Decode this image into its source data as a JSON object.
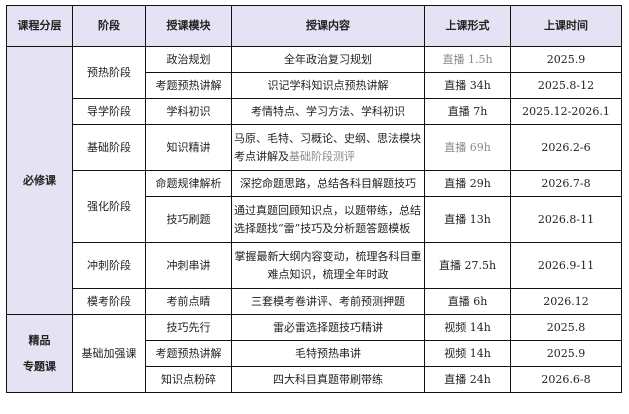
{
  "headers": [
    "课程分层",
    "阶段",
    "授课模块",
    "授课内容",
    "上课形式",
    "上课时间"
  ],
  "colors": {
    "header_bg": "#e4e2f3",
    "muted_text": "#888888"
  },
  "tiers": {
    "required": "必修课",
    "premium_line1": "精品",
    "premium_line2": "专题课"
  },
  "stages": {
    "warmup": "预热阶段",
    "guide": "导学阶段",
    "basic": "基础阶段",
    "strengthen": "强化阶段",
    "sprint": "冲刺阶段",
    "mock": "模考阶段",
    "basic_plus": "基础加强课"
  },
  "rows": [
    {
      "module": "政治规划",
      "content": "全年政治复习规划",
      "format": "直播 1.5h",
      "time": "2025.9"
    },
    {
      "module": "考题预热讲解",
      "content": "识记学科知识点预热讲解",
      "format": "直播 34h",
      "time": "2025.8-12"
    },
    {
      "module": "学科初识",
      "content": "考情特点、学习方法、学科初识",
      "format": "直播 7h",
      "time": "2025.12-2026.1"
    },
    {
      "module": "知识精讲",
      "content": "马原、毛特、习概论、史纲、思法模块考点讲解及",
      "content_muted": "基础阶段测评",
      "format": "直播 69h",
      "time": "2026.2-6"
    },
    {
      "module": "命题规律解析",
      "content": "深挖命题思路，总结各科目解题技巧",
      "format": "直播 29h",
      "time": "2026.7-8"
    },
    {
      "module": "技巧刷题",
      "content": "通过真题回顾知识点，以题带练，总结选择题找“雷”技巧及分析题答题模板",
      "format": "直播 13h",
      "time": "2026.8-11"
    },
    {
      "module": "冲刺串讲",
      "content": "掌握最新大纲内容变动，梳理各科目重难点知识，梳理全年时政",
      "format": "直播 27.5h",
      "time": "2026.9-11"
    },
    {
      "module": "考前点睛",
      "content": "三套模考卷讲评、考前预测押题",
      "format": "直播 6h",
      "time": "2026.12"
    },
    {
      "module": "技巧先行",
      "content": "雷必雷选择题技巧精讲",
      "format": "视频 14h",
      "time": "2025.8"
    },
    {
      "module": "考题预热讲解",
      "content": "毛特预热串讲",
      "format": "视频 14h",
      "time": "2025.9"
    },
    {
      "module": "知识点粉碎",
      "content": "四大科目真题带刷带练",
      "format": "直播 24h",
      "time": "2026.6-8"
    }
  ]
}
